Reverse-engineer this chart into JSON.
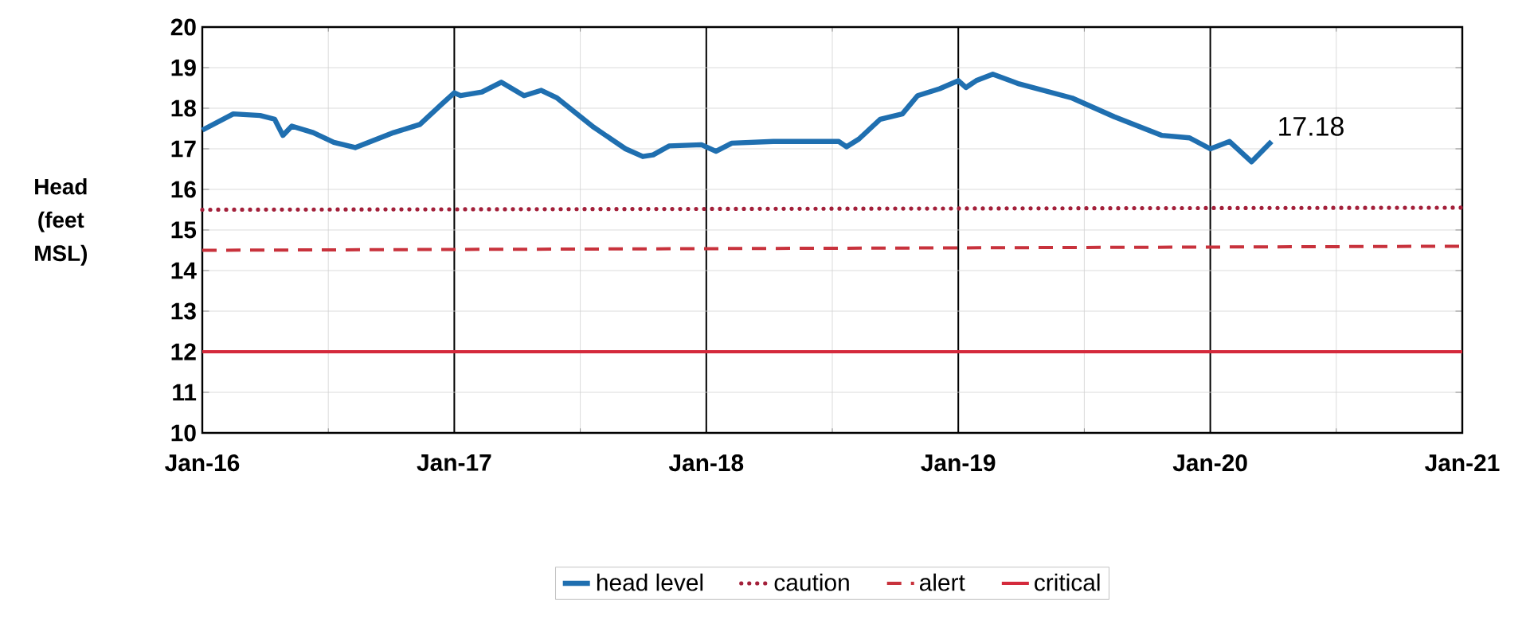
{
  "chart_data": {
    "type": "line",
    "ylabel": "Head (feet MSL)",
    "xlim": [
      "2016-01-01",
      "2021-01-01"
    ],
    "ylim": [
      10,
      20
    ],
    "xticks": [
      {
        "value": "2016-01-01",
        "label": "Jan-16"
      },
      {
        "value": "2017-01-01",
        "label": "Jan-17"
      },
      {
        "value": "2018-01-01",
        "label": "Jan-18"
      },
      {
        "value": "2019-01-01",
        "label": "Jan-19"
      },
      {
        "value": "2020-01-01",
        "label": "Jan-20"
      },
      {
        "value": "2021-01-01",
        "label": "Jan-21"
      }
    ],
    "yticks": [
      10,
      11,
      12,
      13,
      14,
      15,
      16,
      17,
      18,
      19,
      20
    ],
    "grid": true,
    "legend": "bottom",
    "annotations": [
      {
        "text": "17.18",
        "x": "2020-03-30",
        "y": 17.18
      }
    ],
    "series": [
      {
        "name": "head level",
        "color": "#1f6fb0",
        "line_style": "solid",
        "x": [
          "2016-01-01",
          "2016-02-15",
          "2016-03-25",
          "2016-04-15",
          "2016-04-27",
          "2016-05-10",
          "2016-06-10",
          "2016-07-10",
          "2016-08-10",
          "2016-10-05",
          "2016-11-12",
          "2016-12-15",
          "2017-01-01",
          "2017-01-10",
          "2017-02-10",
          "2017-03-10",
          "2017-04-12",
          "2017-05-07",
          "2017-05-30",
          "2017-07-22",
          "2017-09-06",
          "2017-10-01",
          "2017-10-16",
          "2017-11-08",
          "2017-12-25",
          "2018-01-15",
          "2018-02-07",
          "2018-04-08",
          "2018-07-12",
          "2018-07-23",
          "2018-08-10",
          "2018-09-10",
          "2018-10-12",
          "2018-11-03",
          "2018-12-05",
          "2019-01-01",
          "2019-01-12",
          "2019-01-27",
          "2019-02-20",
          "2019-03-30",
          "2019-06-15",
          "2019-08-15",
          "2019-10-23",
          "2019-12-02",
          "2020-01-01",
          "2020-01-29",
          "2020-03-01",
          "2020-03-30"
        ],
        "values": [
          17.46,
          17.86,
          17.82,
          17.73,
          17.33,
          17.56,
          17.4,
          17.16,
          17.03,
          17.4,
          17.6,
          18.12,
          18.38,
          18.31,
          18.4,
          18.64,
          18.31,
          18.44,
          18.25,
          17.53,
          17.0,
          16.81,
          16.85,
          17.07,
          17.1,
          16.94,
          17.14,
          17.18,
          17.18,
          17.05,
          17.24,
          17.73,
          17.86,
          18.31,
          18.48,
          18.68,
          18.51,
          18.68,
          18.84,
          18.6,
          18.25,
          17.79,
          17.33,
          17.27,
          17.0,
          17.18,
          16.68,
          17.18
        ]
      },
      {
        "name": "caution",
        "color": "#a3203a",
        "line_style": "dotted",
        "x": [
          "2016-01-01",
          "2021-01-01"
        ],
        "values": [
          15.5,
          15.55
        ]
      },
      {
        "name": "alert",
        "color": "#c8323c",
        "line_style": "dashed",
        "x": [
          "2016-01-01",
          "2021-01-01"
        ],
        "values": [
          14.5,
          14.6
        ]
      },
      {
        "name": "critical",
        "color": "#d42a3c",
        "line_style": "solid",
        "x": [
          "2016-01-01",
          "2021-01-01"
        ],
        "values": [
          12,
          12
        ]
      }
    ]
  }
}
